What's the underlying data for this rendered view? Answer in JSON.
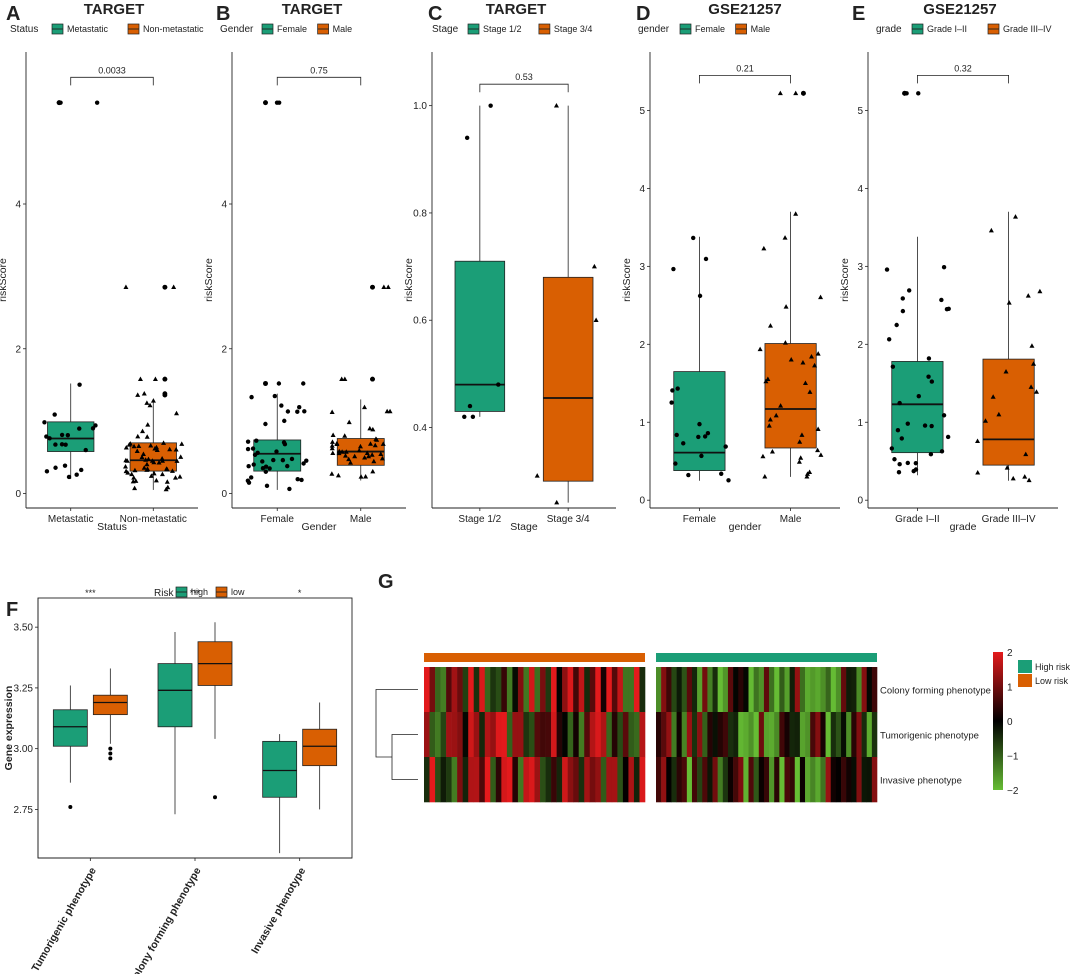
{
  "colors": {
    "high": "#1b9e77",
    "low": "#d95f02",
    "heat_high": "#e31a1c",
    "heat_mid": "#000000",
    "heat_low": "#66bd34"
  },
  "chart_data": [
    {
      "id": "A",
      "letter": "A",
      "type": "box",
      "title": "TARGET",
      "legend_title": "Status",
      "legend": [
        "Metastatic",
        "Non-metastatic"
      ],
      "xlabel": "Status",
      "ylabel": "riskScore",
      "ylim": [
        -0.2,
        6.1
      ],
      "yticks": [
        "0",
        "2",
        "4"
      ],
      "groups": [
        {
          "name": "Metastatic",
          "min": 0.2,
          "q1": 0.58,
          "median": 0.76,
          "q3": 0.99,
          "max": 1.52,
          "outliers": [
            5.4,
            5.4
          ],
          "n": 20,
          "marker": "circle"
        },
        {
          "name": "Non-metastatic",
          "min": 0.05,
          "q1": 0.31,
          "median": 0.46,
          "q3": 0.7,
          "max": 1.3,
          "outliers": [
            2.85,
            2.85,
            1.58,
            1.58,
            1.38,
            1.36
          ],
          "n": 60,
          "marker": "triangle"
        }
      ],
      "comparison": {
        "label": "0.0033",
        "y": 5.75
      }
    },
    {
      "id": "B",
      "letter": "B",
      "type": "box",
      "title": "TARGET",
      "legend_title": "Gender",
      "legend": [
        "Female",
        "Male"
      ],
      "xlabel": "Gender",
      "ylabel": "riskScore",
      "ylim": [
        -0.2,
        6.1
      ],
      "yticks": [
        "0",
        "2",
        "4"
      ],
      "groups": [
        {
          "name": "Female",
          "min": 0.05,
          "q1": 0.31,
          "median": 0.55,
          "q3": 0.74,
          "max": 1.38,
          "outliers": [
            5.4,
            5.4,
            1.52,
            1.52
          ],
          "n": 38,
          "marker": "circle"
        },
        {
          "name": "Male",
          "min": 0.18,
          "q1": 0.39,
          "median": 0.58,
          "q3": 0.76,
          "max": 1.3,
          "outliers": [
            2.85,
            2.85,
            1.58,
            1.58
          ],
          "n": 42,
          "marker": "triangle"
        }
      ],
      "comparison": {
        "label": "0.75",
        "y": 5.75
      }
    },
    {
      "id": "C",
      "letter": "C",
      "type": "box",
      "title": "TARGET",
      "legend_title": "Stage",
      "legend": [
        "Stage 1/2",
        "Stage 3/4"
      ],
      "xlabel": "Stage",
      "ylabel": "riskScore",
      "ylim": [
        0.25,
        1.1
      ],
      "yticks": [
        "0.4",
        "0.6",
        "0.8",
        "1.0"
      ],
      "tick_values": [
        0.4,
        0.6,
        0.8,
        1.0
      ],
      "groups": [
        {
          "name": "Stage 1/2",
          "min": 0.42,
          "q1": 0.43,
          "median": 0.48,
          "q3": 0.71,
          "max": 1.0,
          "outliers": [],
          "points": [
            1.0,
            0.94,
            0.48,
            0.44,
            0.42,
            0.42
          ],
          "marker": "circle"
        },
        {
          "name": "Stage 3/4",
          "min": 0.26,
          "q1": 0.3,
          "median": 0.455,
          "q3": 0.68,
          "max": 1.0,
          "outliers": [],
          "points": [
            1.0,
            0.7,
            0.6,
            0.31,
            0.26
          ],
          "marker": "triangle"
        }
      ],
      "comparison": {
        "label": "0.53",
        "y": 1.04
      }
    },
    {
      "id": "D",
      "letter": "D",
      "type": "box",
      "title": "GSE21257",
      "legend_title": "gender",
      "legend": [
        "Female",
        "Male"
      ],
      "xlabel": "gender",
      "ylabel": "riskScore",
      "ylim": [
        -0.1,
        5.75
      ],
      "yticks": [
        "0",
        "1",
        "2",
        "3",
        "4",
        "5"
      ],
      "groups": [
        {
          "name": "Female",
          "min": 0.25,
          "q1": 0.38,
          "median": 0.61,
          "q3": 1.65,
          "max": 3.38,
          "outliers": [],
          "n": 19,
          "marker": "circle"
        },
        {
          "name": "Male",
          "min": 0.3,
          "q1": 0.67,
          "median": 1.17,
          "q3": 2.01,
          "max": 3.7,
          "outliers": [
            5.22,
            5.22
          ],
          "n": 34,
          "marker": "triangle"
        }
      ],
      "comparison": {
        "label": "0.21",
        "y": 5.45
      }
    },
    {
      "id": "E",
      "letter": "E",
      "type": "box",
      "title": "GSE21257",
      "legend_title": "grade",
      "legend": [
        "Grade I–II",
        "Grade III–IV"
      ],
      "xlabel": "grade",
      "ylabel": "riskScore",
      "ylim": [
        -0.1,
        5.75
      ],
      "yticks": [
        "0",
        "1",
        "2",
        "3",
        "4",
        "5"
      ],
      "groups": [
        {
          "name": "Grade I–II",
          "min": 0.32,
          "q1": 0.61,
          "median": 1.23,
          "q3": 1.78,
          "max": 3.38,
          "outliers": [
            5.22,
            5.22
          ],
          "n": 33,
          "marker": "circle"
        },
        {
          "name": "Grade III–IV",
          "min": 0.25,
          "q1": 0.45,
          "median": 0.78,
          "q3": 1.81,
          "max": 3.7,
          "outliers": [],
          "n": 20,
          "marker": "triangle"
        }
      ],
      "comparison": {
        "label": "0.32",
        "y": 5.45
      }
    }
  ],
  "panel_f": {
    "letter": "F",
    "type": "box",
    "legend_title": "Risk",
    "legend": [
      "high",
      "low"
    ],
    "ylabel": "Gene expression",
    "ylim": [
      2.55,
      3.62
    ],
    "yticks": [
      "2.75",
      "3.00",
      "3.25",
      "3.50"
    ],
    "tick_values": [
      2.75,
      3.0,
      3.25,
      3.5
    ],
    "categories": [
      "Tumorigenic phenotype",
      "Colony forming phenotype",
      "Invasive phenotype"
    ],
    "significance": [
      "***",
      "***",
      "*"
    ],
    "boxes": [
      [
        {
          "min": 2.86,
          "q1": 3.01,
          "median": 3.09,
          "q3": 3.16,
          "max": 3.26,
          "outliers": [
            2.76
          ]
        },
        {
          "min": 3.02,
          "q1": 3.14,
          "median": 3.19,
          "q3": 3.22,
          "max": 3.33,
          "outliers": [
            3.0,
            2.98,
            2.96
          ]
        }
      ],
      [
        {
          "min": 2.73,
          "q1": 3.09,
          "median": 3.24,
          "q3": 3.35,
          "max": 3.48,
          "outliers": []
        },
        {
          "min": 3.04,
          "q1": 3.26,
          "median": 3.35,
          "q3": 3.44,
          "max": 3.52,
          "outliers": [
            2.8
          ]
        }
      ],
      [
        {
          "min": 2.57,
          "q1": 2.8,
          "median": 2.91,
          "q3": 3.03,
          "max": 3.06,
          "outliers": []
        },
        {
          "min": 2.75,
          "q1": 2.93,
          "median": 3.01,
          "q3": 3.08,
          "max": 3.19,
          "outliers": []
        }
      ]
    ]
  },
  "panel_g": {
    "letter": "G",
    "type": "heatmap",
    "rows": [
      "Colony forming phenotype",
      "Tumorigenic phenotype",
      "Invasive phenotype"
    ],
    "groups": [
      {
        "name": "Low risk",
        "n": 40
      },
      {
        "name": "High risk",
        "n": 43
      }
    ],
    "scale": {
      "min": -2,
      "max": 2,
      "ticks": [
        "2",
        "1",
        "0",
        "−1",
        "−2"
      ],
      "tick_values": [
        2,
        1,
        0,
        -1,
        -2
      ]
    },
    "legend": [
      "High risk",
      "Low risk"
    ]
  }
}
